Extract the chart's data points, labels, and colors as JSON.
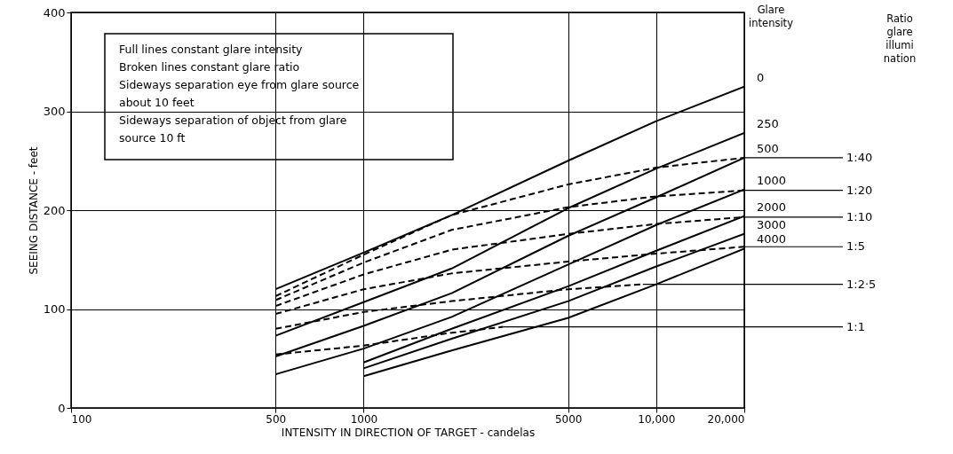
{
  "chart_data": {
    "type": "line",
    "xlabel": "INTENSITY IN DIRECTION OF TARGET - candelas",
    "ylabel": "SEEING DISTANCE - feet",
    "log": "x",
    "xlim": [
      100,
      20000
    ],
    "xticks": [
      100,
      500,
      1000,
      5000,
      {
        "value": 10000,
        "label": "10,000"
      },
      {
        "value": 20000,
        "label": "20,000"
      }
    ],
    "ylim": [
      0,
      400
    ],
    "yticks": [
      0,
      100,
      200,
      300,
      400
    ],
    "grid": true,
    "marker": "none",
    "series": [
      {
        "name": "0",
        "color": "#000000",
        "line_style": "solid",
        "x": [
          500,
          1000,
          2000,
          5000,
          10000,
          20000
        ],
        "values": [
          120,
          157,
          195,
          250,
          290,
          325
        ]
      },
      {
        "name": "250",
        "color": "#000000",
        "line_style": "solid",
        "x": [
          500,
          1000,
          2000,
          5000,
          10000,
          20000
        ],
        "values": [
          73,
          107,
          141,
          202,
          242,
          278
        ]
      },
      {
        "name": "500",
        "color": "#000000",
        "line_style": "solid",
        "x": [
          500,
          1000,
          2000,
          5000,
          10000,
          20000
        ],
        "values": [
          52,
          83,
          116,
          174,
          213,
          253
        ]
      },
      {
        "name": "1000",
        "color": "#000000",
        "line_style": "solid",
        "x": [
          500,
          1000,
          2000,
          5000,
          10000,
          20000
        ],
        "values": [
          34,
          60,
          92,
          145,
          185,
          221
        ]
      },
      {
        "name": "2000",
        "color": "#000000",
        "line_style": "solid",
        "x": [
          1000,
          2000,
          5000,
          10000,
          20000
        ],
        "values": [
          46,
          80,
          123,
          159,
          194
        ]
      },
      {
        "name": "3000",
        "color": "#000000",
        "line_style": "solid",
        "x": [
          1000,
          2000,
          5000,
          10000,
          20000
        ],
        "values": [
          40,
          70,
          108,
          143,
          176
        ]
      },
      {
        "name": "4000",
        "color": "#000000",
        "line_style": "solid",
        "x": [
          1000,
          2000,
          5000,
          10000,
          20000
        ],
        "values": [
          32,
          58,
          91,
          125,
          161
        ]
      },
      {
        "name": "1:40",
        "color": "#000000",
        "line_style": "dashed",
        "x": [
          500,
          1000,
          2000,
          5000,
          10000,
          20000
        ],
        "values": [
          113,
          155,
          195,
          226,
          243,
          253
        ]
      },
      {
        "name": "1:20",
        "color": "#000000",
        "line_style": "dashed",
        "x": [
          500,
          1000,
          2000,
          5000,
          10000,
          20000
        ],
        "values": [
          109,
          147,
          180,
          203,
          214,
          220
        ]
      },
      {
        "name": "1:10",
        "color": "#000000",
        "line_style": "dashed",
        "x": [
          500,
          1000,
          2000,
          5000,
          10000,
          20000
        ],
        "values": [
          103,
          135,
          160,
          176,
          186,
          193
        ]
      },
      {
        "name": "1:5",
        "color": "#000000",
        "line_style": "dashed",
        "x": [
          500,
          1000,
          2000,
          5000,
          10000,
          20000
        ],
        "values": [
          95,
          120,
          136,
          148,
          156,
          163
        ]
      },
      {
        "name": "1:2·5",
        "color": "#000000",
        "line_style": "dashed",
        "x": [
          500,
          1000,
          2000,
          5000,
          9000
        ],
        "values": [
          80,
          97,
          108,
          120,
          125
        ]
      },
      {
        "name": "1:1",
        "color": "#000000",
        "line_style": "dashed",
        "x": [
          500,
          1000,
          2000,
          3000
        ],
        "values": [
          54,
          63,
          76,
          82
        ]
      }
    ],
    "annotations": [
      "Full lines constant glare intensity",
      "Broken lines constant glare ratio",
      "Sideways separation eye from glare source about 10 feet",
      "Sideways separation of object from glare source 10 ft",
      "Glare intensity",
      "Ratio glare illumination"
    ]
  }
}
